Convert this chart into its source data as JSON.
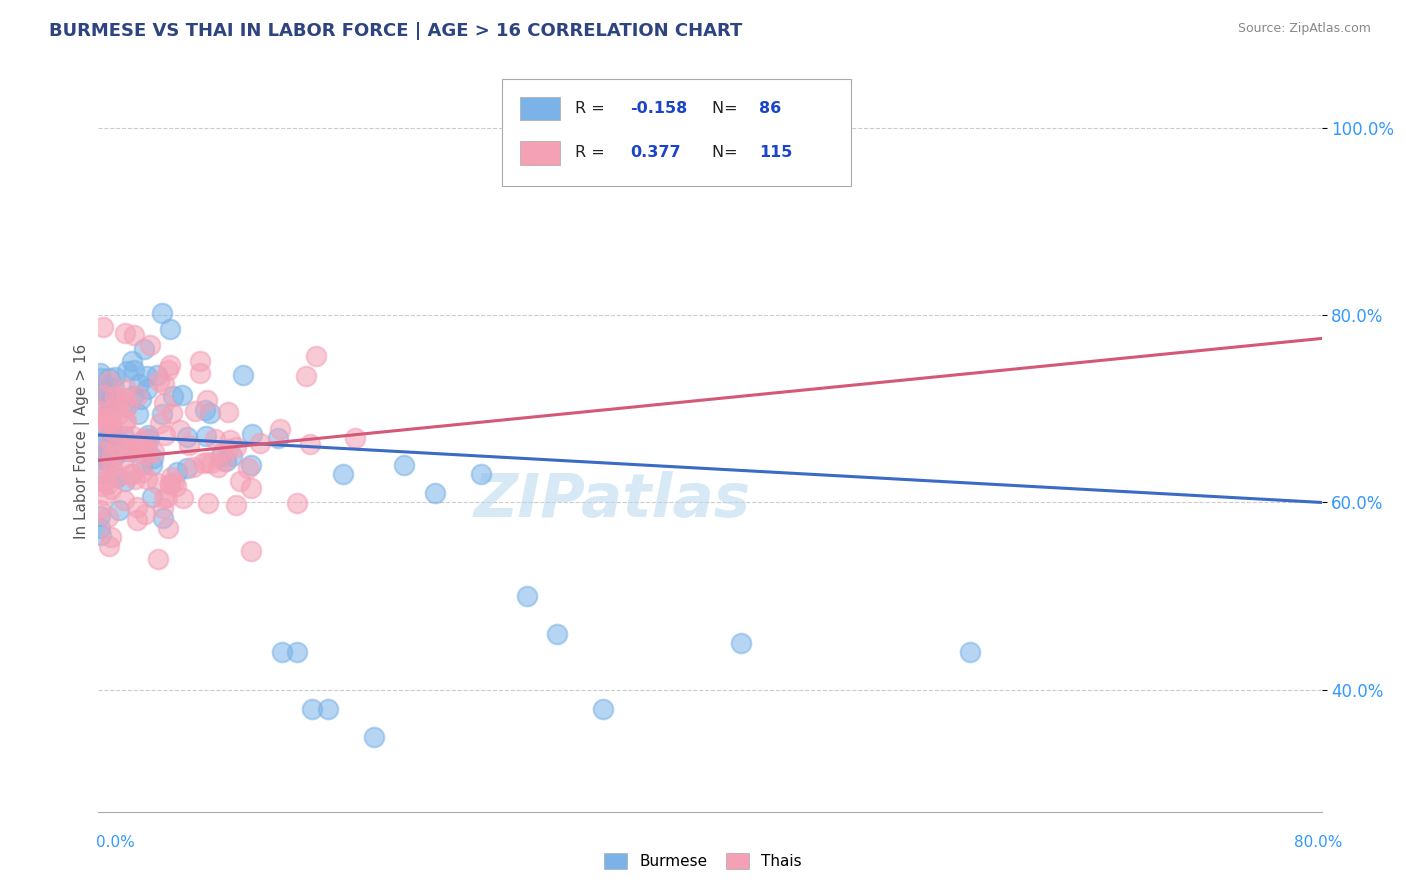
{
  "title": "BURMESE VS THAI IN LABOR FORCE | AGE > 16 CORRELATION CHART",
  "source_text": "Source: ZipAtlas.com",
  "ylabel": "In Labor Force | Age > 16",
  "yticks": [
    0.4,
    0.6,
    0.8,
    1.0
  ],
  "ytick_labels": [
    "40.0%",
    "60.0%",
    "80.0%",
    "100.0%"
  ],
  "xlim": [
    0.0,
    0.8
  ],
  "ylim": [
    0.27,
    1.06
  ],
  "watermark": "ZIPatlas",
  "legend_burmese_R": "-0.158",
  "legend_burmese_N": "86",
  "legend_thais_R": "0.377",
  "legend_thais_N": "115",
  "burmese_color": "#7bb3e8",
  "thais_color": "#f4a0b5",
  "burmese_line_color": "#3b6bc4",
  "thais_line_color": "#d45878",
  "title_color": "#2E4480",
  "source_color": "#888888",
  "legend_R_color": "#1a44cc",
  "legend_N_color": "#1a44cc",
  "grid_color": "#cccccc",
  "burmese_trend_x": [
    0.0,
    0.8
  ],
  "burmese_trend_y": [
    0.672,
    0.6
  ],
  "thais_trend_x": [
    0.0,
    0.8
  ],
  "thais_trend_y": [
    0.645,
    0.775
  ]
}
